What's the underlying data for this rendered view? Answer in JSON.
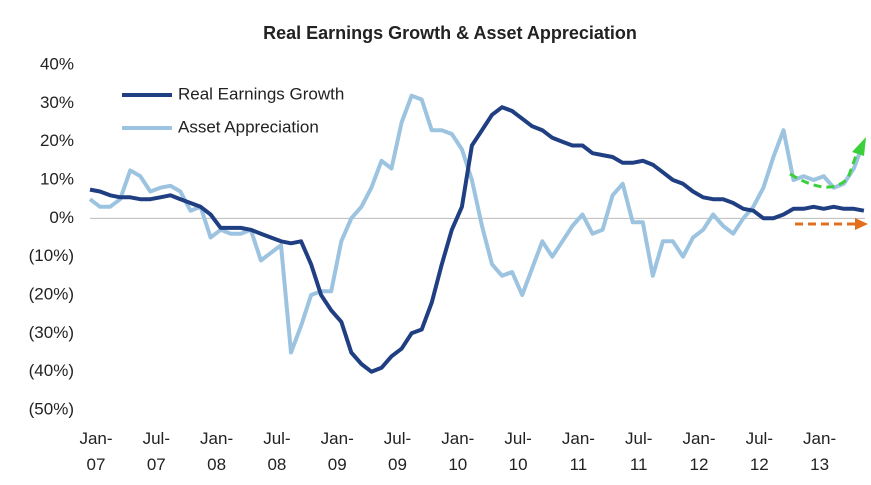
{
  "chart_data": {
    "type": "line",
    "title": "Real Earnings Growth & Asset Appreciation",
    "categories": [
      "Jan-07",
      null,
      null,
      null,
      null,
      null,
      "Jul-07",
      null,
      null,
      null,
      null,
      null,
      "Jan-08",
      null,
      null,
      null,
      null,
      null,
      "Jul-08",
      null,
      null,
      null,
      null,
      null,
      "Jan-09",
      null,
      null,
      null,
      null,
      null,
      "Jul-09",
      null,
      null,
      null,
      null,
      null,
      "Jan-10",
      null,
      null,
      null,
      null,
      null,
      "Jul-10",
      null,
      null,
      null,
      null,
      null,
      "Jan-11",
      null,
      null,
      null,
      null,
      null,
      "Jul-11",
      null,
      null,
      null,
      null,
      null,
      "Jan-12",
      null,
      null,
      null,
      null,
      null,
      "Jul-12",
      null,
      null,
      null,
      null,
      null,
      "Jan-13",
      null,
      null,
      null,
      null,
      null
    ],
    "series": [
      {
        "name": "Real Earnings Growth",
        "color": "#1f3f82",
        "values": [
          7.5,
          7,
          6,
          5.5,
          5.5,
          5,
          5,
          5.5,
          6,
          5,
          4,
          3,
          1,
          -2.5,
          -2.5,
          -2.5,
          -3,
          -4,
          -5,
          -6,
          -6.5,
          -6,
          -12,
          -20,
          -24,
          -27,
          -35,
          -38,
          -40,
          -39,
          -36,
          -34,
          -30,
          -29,
          -22,
          -12,
          -3,
          3,
          19,
          23,
          27,
          29,
          28,
          26,
          24,
          23,
          21,
          20,
          19,
          19,
          17,
          16.5,
          16,
          14.5,
          14.5,
          15,
          14,
          12,
          10,
          9,
          7,
          5.5,
          5,
          5,
          4,
          2.5,
          2,
          0,
          0,
          1,
          2.5,
          2.5,
          3,
          2.5,
          3,
          2.5,
          2.5,
          2
        ]
      },
      {
        "name": "Asset Appreciation",
        "color": "#9cc3e0",
        "values": [
          5,
          3,
          3,
          5,
          12.5,
          11,
          7,
          8,
          8.5,
          7,
          2,
          3,
          -5,
          -3,
          -4,
          -4,
          -3,
          -11,
          -9,
          -7,
          -35,
          -28,
          -20,
          -19,
          -19,
          -6,
          0,
          3,
          8,
          15,
          13,
          25,
          32,
          31,
          23,
          23,
          22,
          18,
          10,
          -2,
          -12,
          -15,
          -14,
          -20,
          -13,
          -6,
          -10,
          -6,
          -2,
          1,
          -4,
          -3,
          6,
          9,
          -1,
          -1,
          -15,
          -6,
          -6,
          -10,
          -5,
          -3,
          1,
          -2,
          -4,
          0,
          3,
          8,
          16,
          23,
          10,
          11,
          10,
          11,
          8,
          9,
          13,
          20
        ]
      }
    ],
    "ylim": [
      -50,
      40
    ],
    "yticks": [
      {
        "value": -50,
        "label": "(50%)"
      },
      {
        "value": -40,
        "label": "(40%)"
      },
      {
        "value": -30,
        "label": "(30%)"
      },
      {
        "value": -20,
        "label": "(20%)"
      },
      {
        "value": -10,
        "label": "(10%)"
      },
      {
        "value": 0,
        "label": "0%"
      },
      {
        "value": 10,
        "label": "10%"
      },
      {
        "value": 20,
        "label": "20%"
      },
      {
        "value": 30,
        "label": "30%"
      },
      {
        "value": 40,
        "label": "40%"
      }
    ]
  }
}
